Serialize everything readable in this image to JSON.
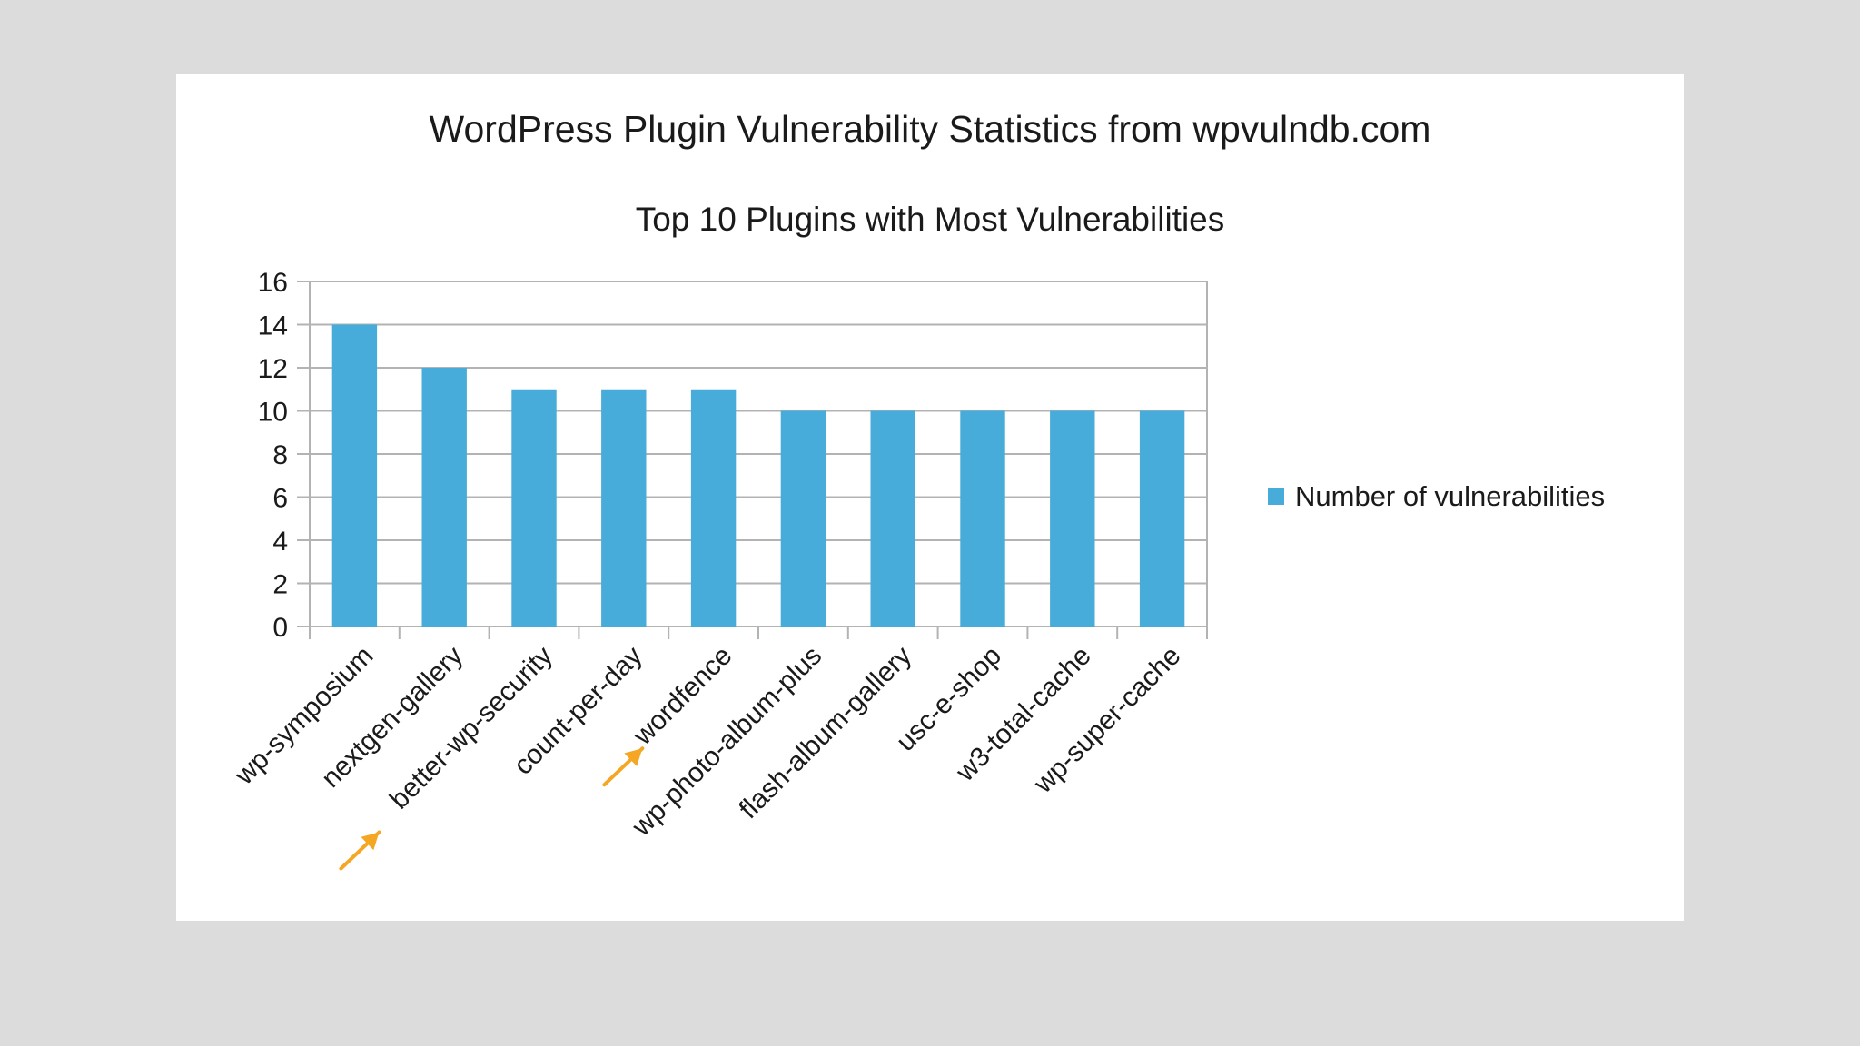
{
  "chart_data": {
    "type": "bar",
    "title": "WordPress Plugin Vulnerability Statistics from wpvulndb.com",
    "subtitle": "Top 10 Plugins with Most Vulnerabilities",
    "xlabel": "",
    "ylabel": "",
    "categories": [
      "wp-symposium",
      "nextgen-gallery",
      "better-wp-security",
      "count-per-day",
      "wordfence",
      "wp-photo-album-plus",
      "flash-album-gallery",
      "usc-e-shop",
      "w3-total-cache",
      "wp-super-cache"
    ],
    "series": [
      {
        "name": "Number of vulnerabilities",
        "values": [
          14,
          12,
          11,
          11,
          11,
          10,
          10,
          10,
          10,
          10
        ]
      }
    ],
    "ylim": [
      0,
      16
    ],
    "yticks": [
      0,
      2,
      4,
      6,
      8,
      10,
      12,
      14,
      16
    ],
    "grid": true,
    "legend_position": "right",
    "colors": {
      "bar": "#47acd9",
      "grid": "#b3b3b3",
      "axis": "#b3b3b3",
      "annotation_arrow": "#f5a623"
    },
    "annotations": [
      {
        "type": "arrow",
        "target_category": "better-wp-security"
      },
      {
        "type": "arrow",
        "target_category": "wordfence"
      }
    ]
  }
}
